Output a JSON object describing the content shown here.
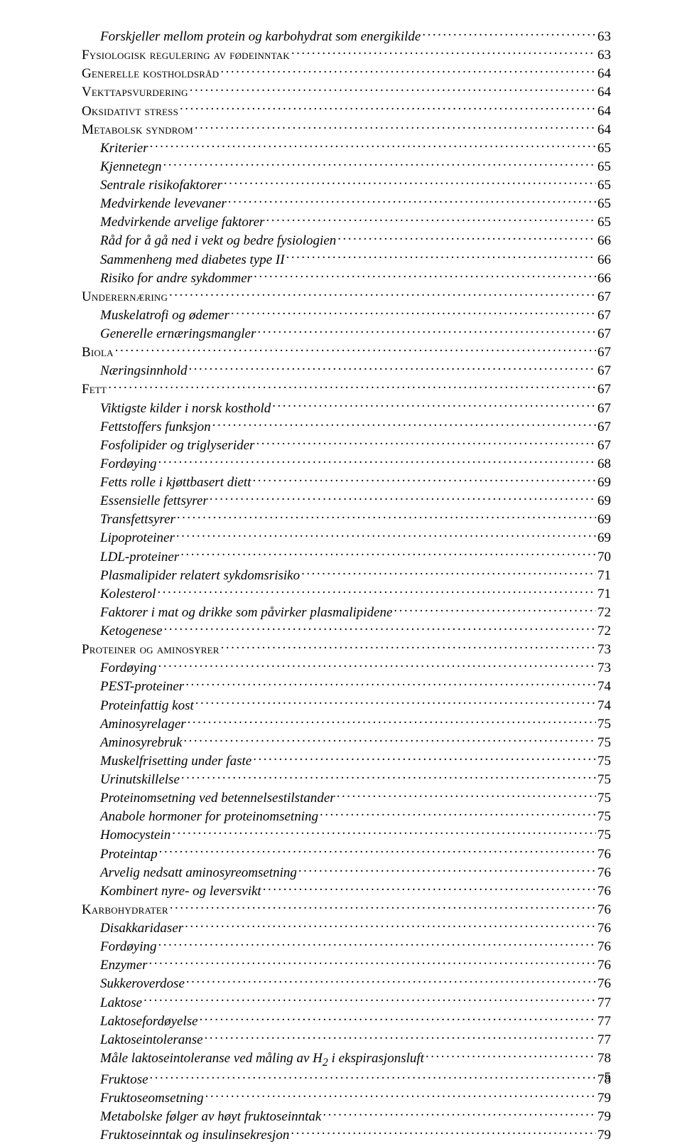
{
  "page_number": "5",
  "entries": [
    {
      "level": 2,
      "style": "italic",
      "title": "Forskjeller mellom protein og karbohydrat som energikilde",
      "page": "63"
    },
    {
      "level": 1,
      "style": "smallcaps",
      "title": "Fysiologisk regulering av fødeinntak",
      "page": "63"
    },
    {
      "level": 1,
      "style": "smallcaps",
      "title": "Generelle kostholdsråd",
      "page": "64"
    },
    {
      "level": 1,
      "style": "smallcaps",
      "title": "Vekttapsvurdering",
      "page": "64"
    },
    {
      "level": 1,
      "style": "smallcaps",
      "title": "Oksidativt stress",
      "page": "64"
    },
    {
      "level": 1,
      "style": "smallcaps",
      "title": "Metabolsk syndrom",
      "page": "64"
    },
    {
      "level": 2,
      "style": "italic",
      "title": "Kriterier",
      "page": "65"
    },
    {
      "level": 2,
      "style": "italic",
      "title": "Kjennetegn",
      "page": "65"
    },
    {
      "level": 2,
      "style": "italic",
      "title": "Sentrale risikofaktorer",
      "page": "65"
    },
    {
      "level": 2,
      "style": "italic",
      "title": "Medvirkende levevaner",
      "page": "65"
    },
    {
      "level": 2,
      "style": "italic",
      "title": "Medvirkende arvelige faktorer",
      "page": "65"
    },
    {
      "level": 2,
      "style": "italic",
      "title": "Råd for å gå ned i vekt og bedre fysiologien",
      "page": "66"
    },
    {
      "level": 2,
      "style": "italic",
      "title": "Sammenheng med diabetes type II",
      "page": "66"
    },
    {
      "level": 2,
      "style": "italic",
      "title": "Risiko for andre sykdommer",
      "page": "66"
    },
    {
      "level": 1,
      "style": "smallcaps",
      "title": "Underernæring",
      "page": "67"
    },
    {
      "level": 2,
      "style": "italic",
      "title": "Muskelatrofi og ødemer",
      "page": "67"
    },
    {
      "level": 2,
      "style": "italic",
      "title": "Generelle ernæringsmangler",
      "page": "67"
    },
    {
      "level": 1,
      "style": "smallcaps",
      "title": "Biola",
      "page": "67"
    },
    {
      "level": 2,
      "style": "italic",
      "title": "Næringsinnhold",
      "page": "67"
    },
    {
      "level": 1,
      "style": "smallcaps",
      "title": "Fett",
      "page": "67"
    },
    {
      "level": 2,
      "style": "italic",
      "title": "Viktigste kilder i norsk kosthold",
      "page": "67"
    },
    {
      "level": 2,
      "style": "italic",
      "title": "Fettstoffers funksjon",
      "page": "67"
    },
    {
      "level": 2,
      "style": "italic",
      "title": "Fosfolipider og triglyserider",
      "page": "67"
    },
    {
      "level": 2,
      "style": "italic",
      "title": "Fordøying",
      "page": "68"
    },
    {
      "level": 2,
      "style": "italic",
      "title": "Fetts rolle i kjøttbasert diett",
      "page": "69"
    },
    {
      "level": 2,
      "style": "italic",
      "title": "Essensielle fettsyrer",
      "page": "69"
    },
    {
      "level": 2,
      "style": "italic",
      "title": "Transfettsyrer",
      "page": "69"
    },
    {
      "level": 2,
      "style": "italic",
      "title": "Lipoproteiner",
      "page": "69"
    },
    {
      "level": 2,
      "style": "italic",
      "title": "LDL-proteiner",
      "page": "70"
    },
    {
      "level": 2,
      "style": "italic",
      "title": "Plasmalipider relatert sykdomsrisiko",
      "page": "71"
    },
    {
      "level": 2,
      "style": "italic",
      "title": "Kolesterol",
      "page": "71"
    },
    {
      "level": 2,
      "style": "italic",
      "title": "Faktorer i mat og drikke som påvirker plasmalipidene",
      "page": "72"
    },
    {
      "level": 2,
      "style": "italic",
      "title": "Ketogenese",
      "page": "72"
    },
    {
      "level": 1,
      "style": "smallcaps",
      "title": "Proteiner og aminosyrer",
      "page": "73"
    },
    {
      "level": 2,
      "style": "italic",
      "title": "Fordøying",
      "page": "73"
    },
    {
      "level": 2,
      "style": "italic",
      "title": "PEST-proteiner",
      "page": "74"
    },
    {
      "level": 2,
      "style": "italic",
      "title": "Proteinfattig kost",
      "page": "74"
    },
    {
      "level": 2,
      "style": "italic",
      "title": "Aminosyrelager",
      "page": "75"
    },
    {
      "level": 2,
      "style": "italic",
      "title": "Aminosyrebruk",
      "page": "75"
    },
    {
      "level": 2,
      "style": "italic",
      "title": "Muskelfrisetting under faste",
      "page": "75"
    },
    {
      "level": 2,
      "style": "italic",
      "title": "Urinutskillelse",
      "page": "75"
    },
    {
      "level": 2,
      "style": "italic",
      "title": "Proteinomsetning ved betennelsestilstander",
      "page": "75"
    },
    {
      "level": 2,
      "style": "italic",
      "title": "Anabole hormoner for proteinomsetning",
      "page": "75"
    },
    {
      "level": 2,
      "style": "italic",
      "title": "Homocystein",
      "page": "75"
    },
    {
      "level": 2,
      "style": "italic",
      "title": "Proteintap",
      "page": "76"
    },
    {
      "level": 2,
      "style": "italic",
      "title": "Arvelig nedsatt aminosyreomsetning",
      "page": "76"
    },
    {
      "level": 2,
      "style": "italic",
      "title": "Kombinert nyre- og leversvikt",
      "page": "76"
    },
    {
      "level": 1,
      "style": "smallcaps",
      "title": "Karbohydrater",
      "page": "76"
    },
    {
      "level": 2,
      "style": "italic",
      "title": "Disakkaridaser",
      "page": "76"
    },
    {
      "level": 2,
      "style": "italic",
      "title": "Fordøying",
      "page": "76"
    },
    {
      "level": 2,
      "style": "italic",
      "title": "Enzymer",
      "page": "76"
    },
    {
      "level": 2,
      "style": "italic",
      "title": "Sukkeroverdose",
      "page": "76"
    },
    {
      "level": 2,
      "style": "italic",
      "title": "Laktose",
      "page": "77"
    },
    {
      "level": 2,
      "style": "italic",
      "title": "Laktosefordøyelse",
      "page": "77"
    },
    {
      "level": 2,
      "style": "italic",
      "title": "Laktoseintoleranse",
      "page": "77"
    },
    {
      "level": 2,
      "style": "italic",
      "title": "Måle laktoseintoleranse ved måling av H<sub>2</sub> i ekspirasjonsluft",
      "page": "78"
    },
    {
      "level": 2,
      "style": "italic",
      "title": "Fruktose",
      "page": "78"
    },
    {
      "level": 2,
      "style": "italic",
      "title": "Fruktoseomsetning",
      "page": "79"
    },
    {
      "level": 2,
      "style": "italic",
      "title": "Metabolske følger av høyt fruktoseinntak",
      "page": "79"
    },
    {
      "level": 2,
      "style": "italic",
      "title": "Fruktoseinntak og insulinsekresjon",
      "page": "79"
    }
  ]
}
